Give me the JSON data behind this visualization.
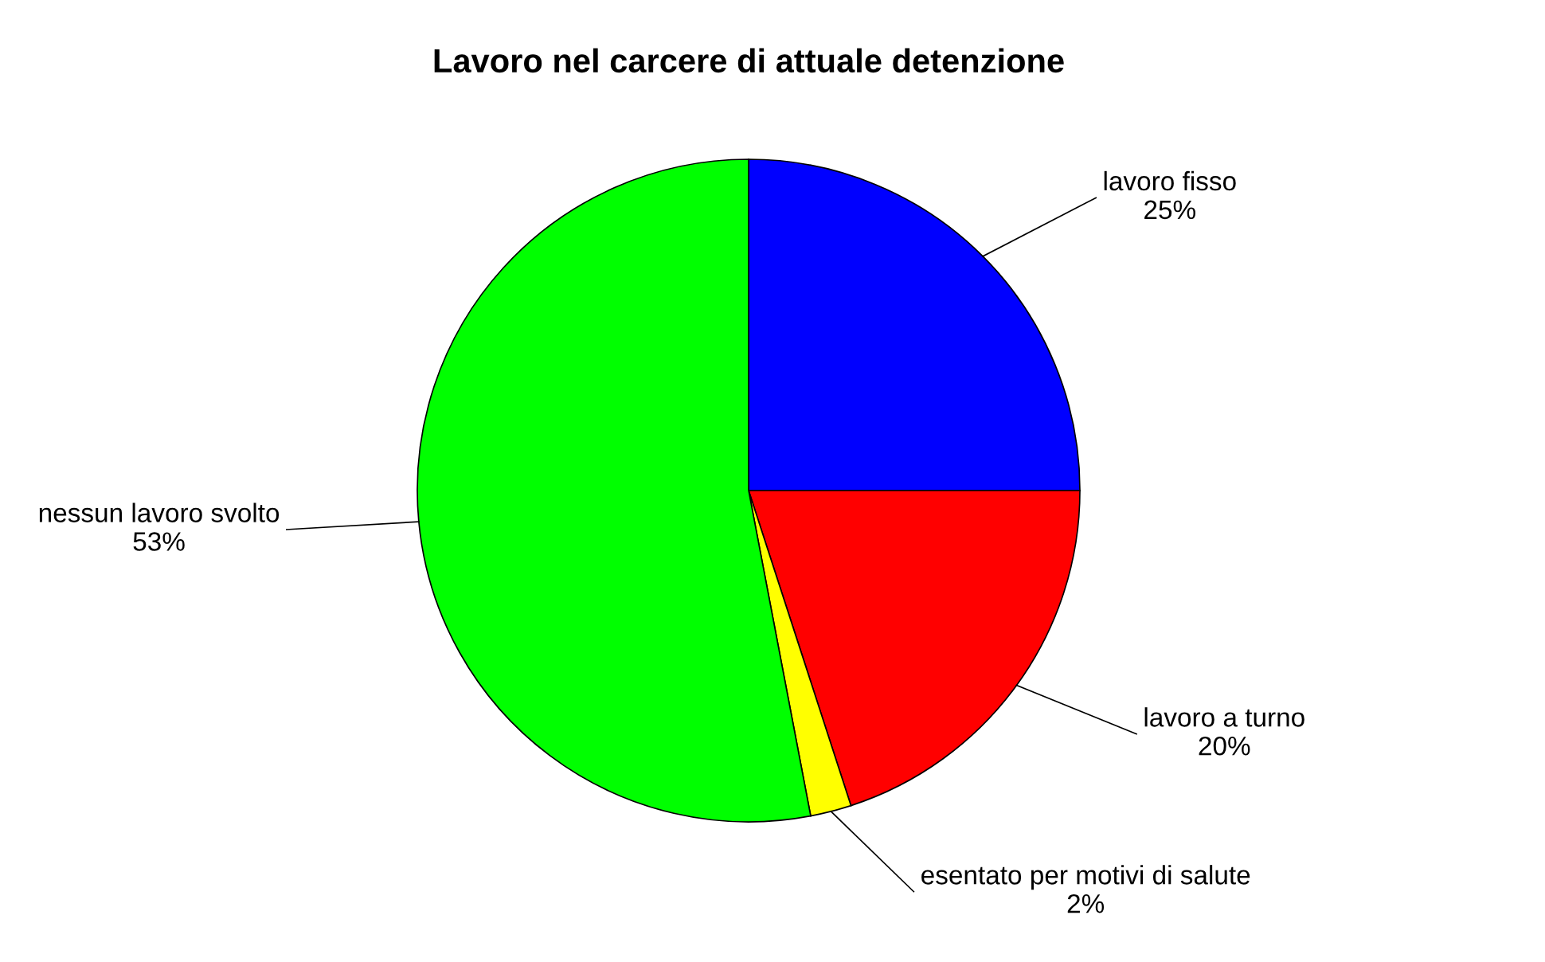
{
  "chart_data": {
    "type": "pie",
    "title": "Lavoro nel carcere di attuale detenzione",
    "categories": [
      "lavoro fisso",
      "lavoro a turno",
      "esentato per motivi di salute",
      "nessun lavoro svolto"
    ],
    "values": [
      25,
      20,
      2,
      53
    ],
    "value_labels": [
      "25%",
      "20%",
      "2%",
      "53%"
    ],
    "colors": [
      "#0000ff",
      "#ff0000",
      "#ffff00",
      "#00ff00"
    ]
  }
}
